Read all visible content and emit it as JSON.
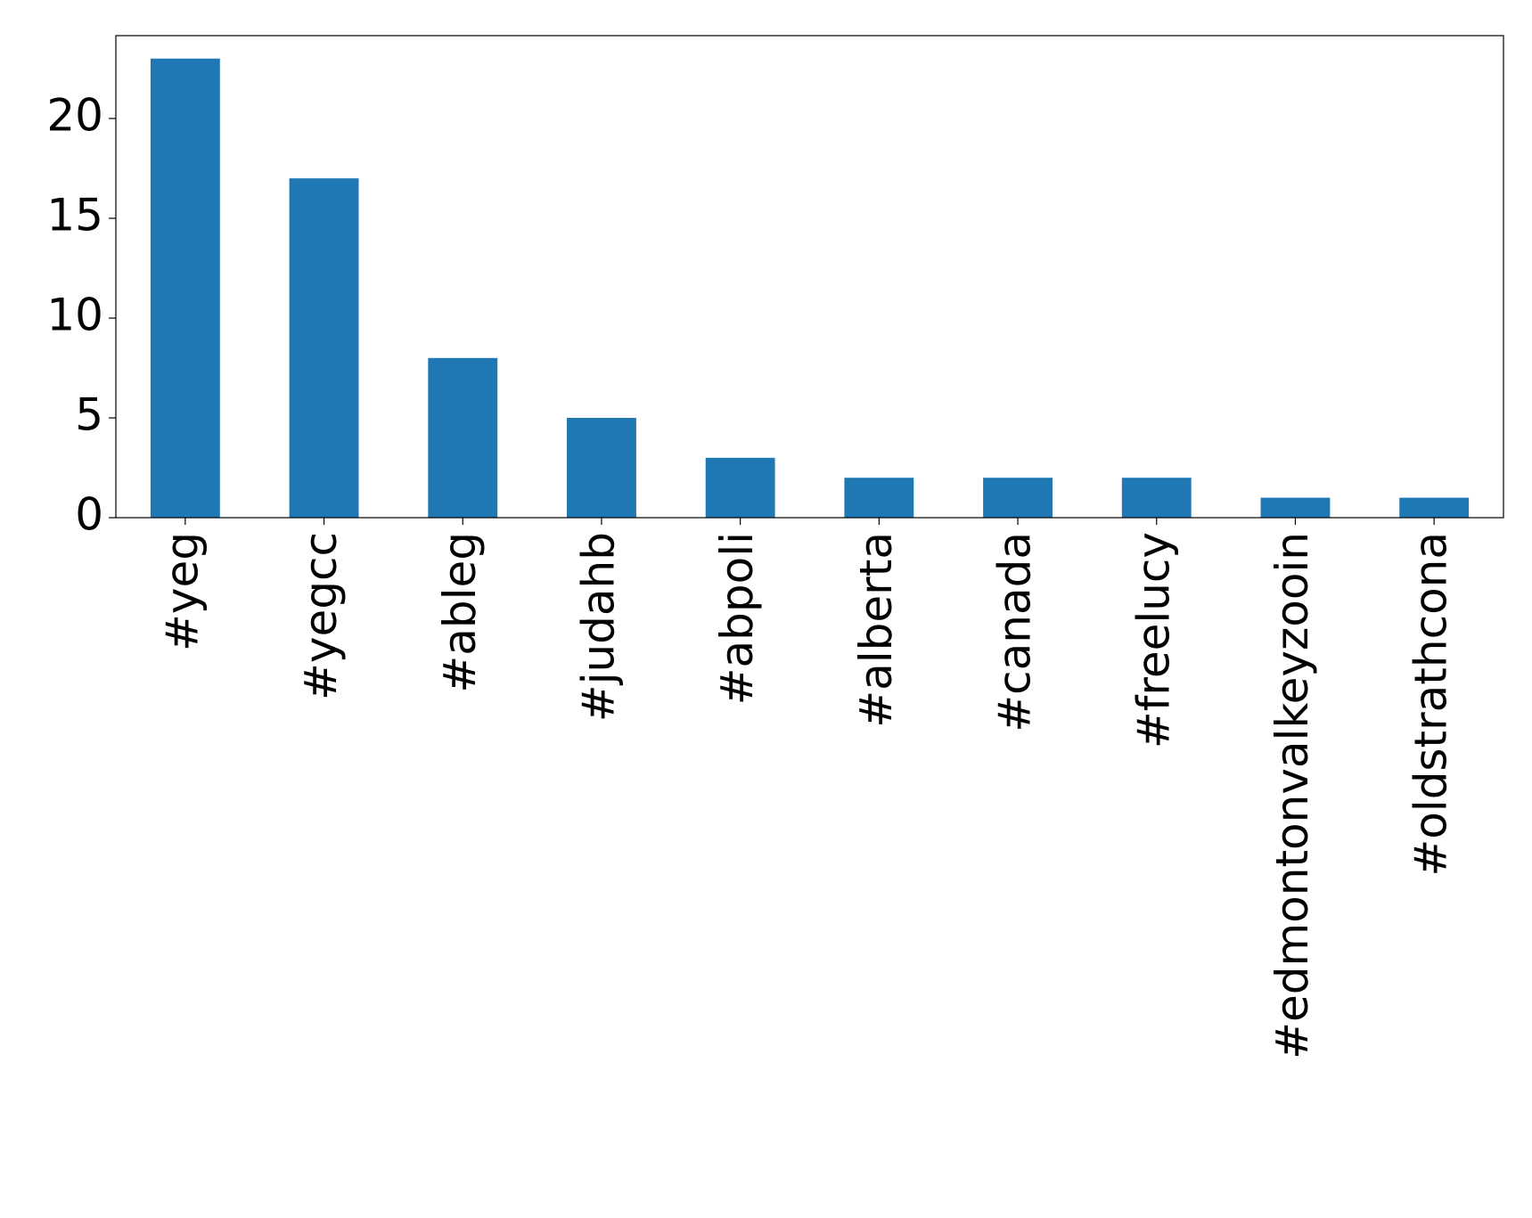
{
  "chart_data": {
    "type": "bar",
    "categories": [
      "#yeg",
      "#yegcc",
      "#ableg",
      "#judahb",
      "#abpoli",
      "#alberta",
      "#canada",
      "#freelucy",
      "#edmontonvalkeyzooin",
      "#oldstrathcona"
    ],
    "values": [
      23,
      17,
      8,
      5,
      3,
      2,
      2,
      2,
      1,
      1
    ],
    "color": "#1f77b4",
    "ylim": [
      0,
      24.15
    ],
    "yticks": [
      0,
      5,
      10,
      15,
      20
    ],
    "grid": false
  }
}
